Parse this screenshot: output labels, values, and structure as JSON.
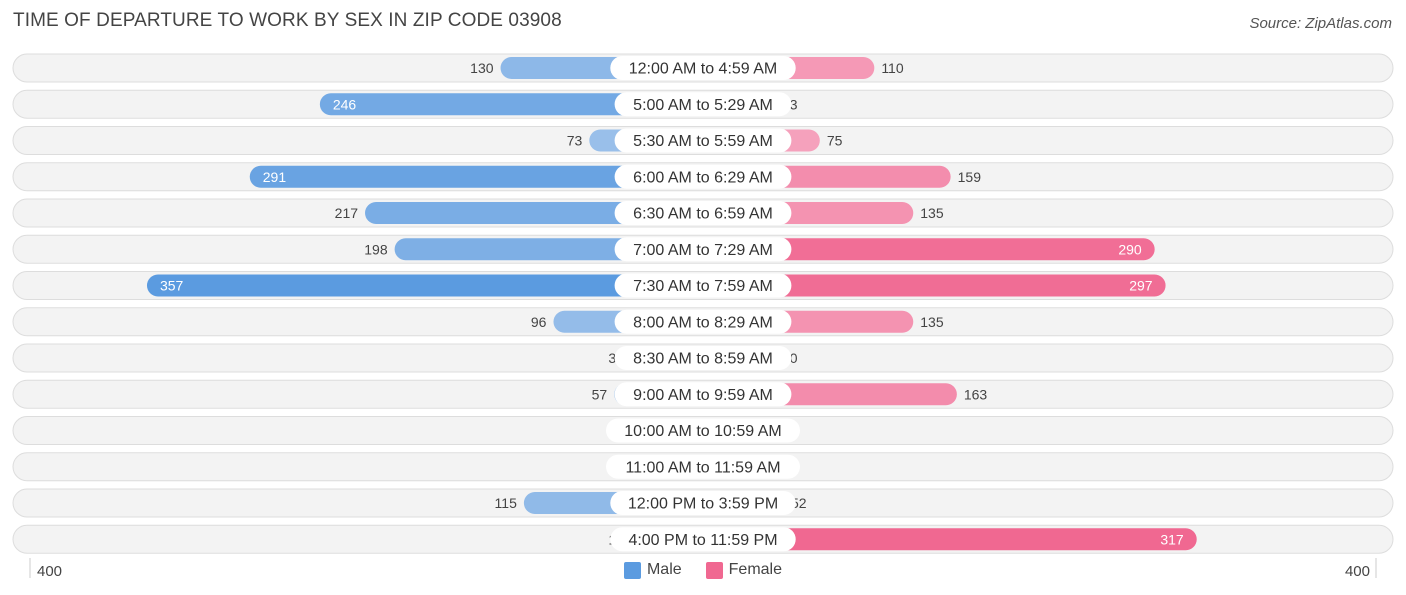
{
  "header": {
    "title": "TIME OF DEPARTURE TO WORK BY SEX IN ZIP CODE 03908",
    "source": "Source: ZipAtlas.com"
  },
  "colors": {
    "male_light": "#a9c8ec",
    "male_dark": "#5b9be0",
    "female_light": "#f7b3c9",
    "female_dark": "#f06891",
    "row_bg": "#efefef",
    "row_border": "#dddddd"
  },
  "legend": {
    "male_label": "Male",
    "female_label": "Female"
  },
  "axis": {
    "left_label": "400",
    "right_label": "400"
  },
  "chart_data": {
    "type": "bar",
    "orientation": "horizontal-diverging",
    "title": "TIME OF DEPARTURE TO WORK BY SEX IN ZIP CODE 03908",
    "xlim": [
      -400,
      400
    ],
    "categories": [
      "12:00 AM to 4:59 AM",
      "5:00 AM to 5:29 AM",
      "5:30 AM to 5:59 AM",
      "6:00 AM to 6:29 AM",
      "6:30 AM to 6:59 AM",
      "7:00 AM to 7:29 AM",
      "7:30 AM to 7:59 AM",
      "8:00 AM to 8:29 AM",
      "8:30 AM to 8:59 AM",
      "9:00 AM to 9:59 AM",
      "10:00 AM to 10:59 AM",
      "11:00 AM to 11:59 AM",
      "12:00 PM to 3:59 PM",
      "4:00 PM to 11:59 PM"
    ],
    "series": [
      {
        "name": "Male",
        "values": [
          130,
          246,
          73,
          291,
          217,
          198,
          357,
          96,
          34,
          57,
          0,
          0,
          115,
          12
        ]
      },
      {
        "name": "Female",
        "values": [
          110,
          13,
          75,
          159,
          135,
          290,
          297,
          135,
          40,
          163,
          0,
          0,
          52,
          317
        ]
      }
    ],
    "legend_position": "bottom-center"
  }
}
